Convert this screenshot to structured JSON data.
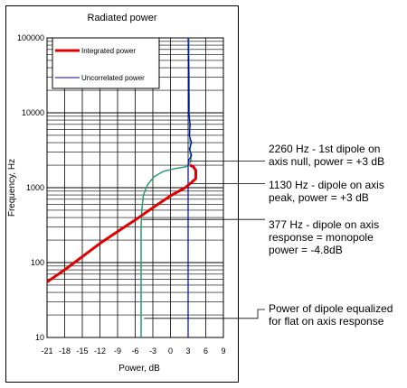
{
  "chart_data": {
    "type": "line",
    "title": "Radiated power",
    "xlabel": "Power, dB",
    "ylabel": "Frequency, Hz",
    "xlim": [
      -21,
      9
    ],
    "ylim": [
      10,
      100000
    ],
    "yscale": "log",
    "grid": true,
    "legend_position": "top-left",
    "x_ticks": [
      "-21",
      "-18",
      "-15",
      "-12",
      "-9",
      "-6",
      "-3",
      "0",
      "3",
      "6",
      "9"
    ],
    "y_ticks": [
      "10",
      "100",
      "1000",
      "10000",
      "100000"
    ],
    "series": [
      {
        "name": "Integrated power",
        "color": "#e00000",
        "points": [
          [
            -21,
            55
          ],
          [
            -18,
            80
          ],
          [
            -15,
            120
          ],
          [
            -12,
            180
          ],
          [
            -9,
            260
          ],
          [
            -6,
            370
          ],
          [
            -3,
            540
          ],
          [
            0,
            780
          ],
          [
            2.5,
            1000
          ],
          [
            3.6,
            1180
          ],
          [
            4.3,
            1320
          ],
          [
            4.3,
            1700
          ],
          [
            3.9,
            1900
          ],
          [
            3.3,
            2000
          ]
        ]
      },
      {
        "name": "Uncorrelated power",
        "color": "#0000cc",
        "points": [
          [
            3,
            10
          ],
          [
            3,
            1900
          ],
          [
            3.05,
            2300
          ],
          [
            3.6,
            2700
          ],
          [
            3.2,
            3300
          ],
          [
            3.6,
            4000
          ],
          [
            3.2,
            5000
          ],
          [
            3.35,
            7000
          ],
          [
            3.1,
            10000
          ],
          [
            3.1,
            30000
          ],
          [
            3,
            100000
          ]
        ]
      },
      {
        "name": "Power of dipole equalized for flat on axis response",
        "color": "#2e9a6e",
        "points": [
          [
            -5,
            10
          ],
          [
            -5,
            300
          ],
          [
            -4.9,
            500
          ],
          [
            -4.6,
            800
          ],
          [
            -3.9,
            1100
          ],
          [
            -2.8,
            1400
          ],
          [
            -1.2,
            1650
          ],
          [
            0.8,
            1800
          ],
          [
            2.6,
            1900
          ],
          [
            3,
            2000
          ],
          [
            3.4,
            2200
          ],
          [
            3.5,
            2500
          ],
          [
            3.3,
            3000
          ],
          [
            3.4,
            3600
          ],
          [
            3.3,
            4200
          ],
          [
            3.25,
            6000
          ],
          [
            3.2,
            10000
          ],
          [
            3.1,
            100000
          ]
        ]
      }
    ],
    "annotations": [
      {
        "lines": [
          "2260 Hz - 1st dipole on",
          "axis null, power = +3 dB"
        ],
        "x": 3.1,
        "y": 2260
      },
      {
        "lines": [
          "1130 Hz - dipole on axis",
          "peak, power = +3 dB"
        ],
        "x": 3.5,
        "y": 1130
      },
      {
        "lines": [
          "377 Hz - dipole on axis",
          "response = monopole",
          "power = -4.8dB"
        ],
        "x": -4.8,
        "y": 377
      },
      {
        "lines": [
          "Power of dipole equalized",
          "for flat on axis response"
        ],
        "x": -4.5,
        "y": 18
      }
    ]
  }
}
